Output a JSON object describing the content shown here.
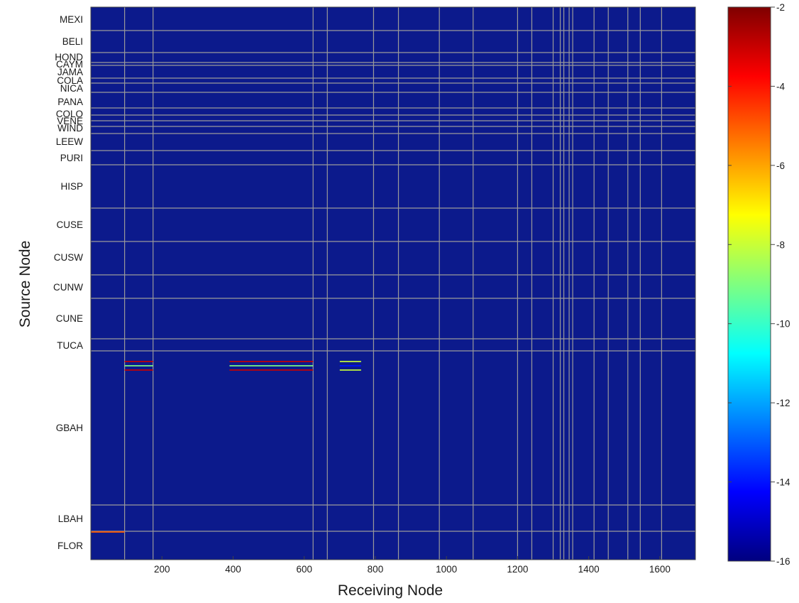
{
  "chart_data": {
    "type": "heatmap",
    "title": "",
    "xlabel": "Receiving Node",
    "ylabel": "Source Node",
    "xlim": [
      0,
      1700
    ],
    "x_ticks": [
      200,
      400,
      600,
      800,
      1000,
      1200,
      1400,
      1600
    ],
    "source_regions": [
      "MEXI",
      "BELI",
      "HOND",
      "CAYM",
      "JAMA",
      "COLA",
      "NICA",
      "PANA",
      "COLO",
      "VENE",
      "WIND",
      "LEEW",
      "PURI",
      "HISP",
      "CUSE",
      "CUSW",
      "CUNW",
      "CUNE",
      "TUCA",
      "GBAH",
      "LBAH",
      "FLOR"
    ],
    "x_region_boundaries": [
      95,
      175,
      625,
      665,
      795,
      865,
      980,
      1075,
      1200,
      1240,
      1300,
      1320,
      1330,
      1345,
      1355,
      1415,
      1455,
      1510,
      1545,
      1605
    ],
    "colorbar": {
      "min": -16,
      "max": -2,
      "ticks": [
        -2,
        -4,
        -6,
        -8,
        -10,
        -12,
        -14,
        -16
      ],
      "colormap": "jet"
    },
    "background_value": -16,
    "nonzero_cells": [
      {
        "source": "GBAH",
        "x_from": 95,
        "x_to": 175,
        "value": -3
      },
      {
        "source": "GBAH",
        "x_from": 390,
        "x_to": 625,
        "value": -3
      },
      {
        "source": "GBAH",
        "x_from": 700,
        "x_to": 760,
        "value": -8
      },
      {
        "source": "FLOR",
        "x_from": 0,
        "x_to": 95,
        "value": -5
      }
    ]
  }
}
